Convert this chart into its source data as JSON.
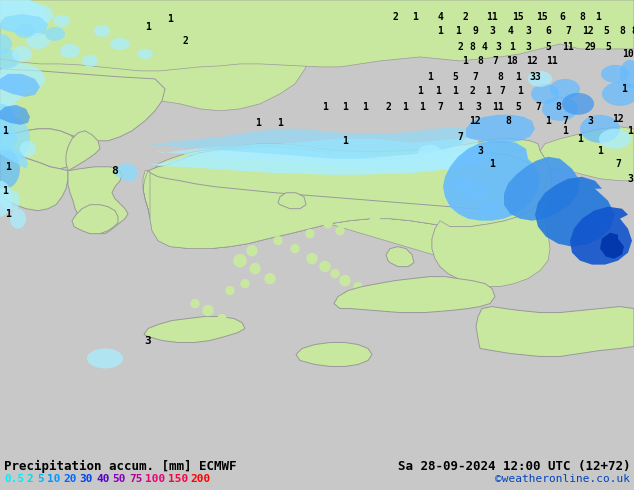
{
  "title_left": "Precipitation accum. [mm] ECMWF",
  "title_right": "Sa 28-09-2024 12:00 UTC (12+72)",
  "credit": "©weatheronline.co.uk",
  "legend_values": [
    "0.5",
    "2",
    "5",
    "10",
    "20",
    "30",
    "40",
    "50",
    "75",
    "100",
    "150",
    "200"
  ],
  "legend_colors": [
    "#00eeff",
    "#00ddee",
    "#00bbff",
    "#0099ff",
    "#0066ff",
    "#0033ee",
    "#5500cc",
    "#8800bb",
    "#bb0099",
    "#ee0077",
    "#ff0044",
    "#ff0000"
  ],
  "sea_color": "#d8d8d8",
  "land_green": "#c8e8a0",
  "land_light_green": "#d8f0b8",
  "precip_light_cyan": "#aaeeff",
  "precip_cyan": "#88ddff",
  "precip_blue_light": "#66bbff",
  "precip_blue": "#4499ee",
  "precip_blue_med": "#2277dd",
  "precip_blue_dark": "#1155cc",
  "precip_blue_deep": "#0033aa",
  "precip_blue_deepest": "#002288",
  "border_color": "#999999",
  "bg_color": "#c8c8c8",
  "bottom_bar_color": "#d8d8d8",
  "title_fontsize": 9,
  "legend_fontsize": 8
}
